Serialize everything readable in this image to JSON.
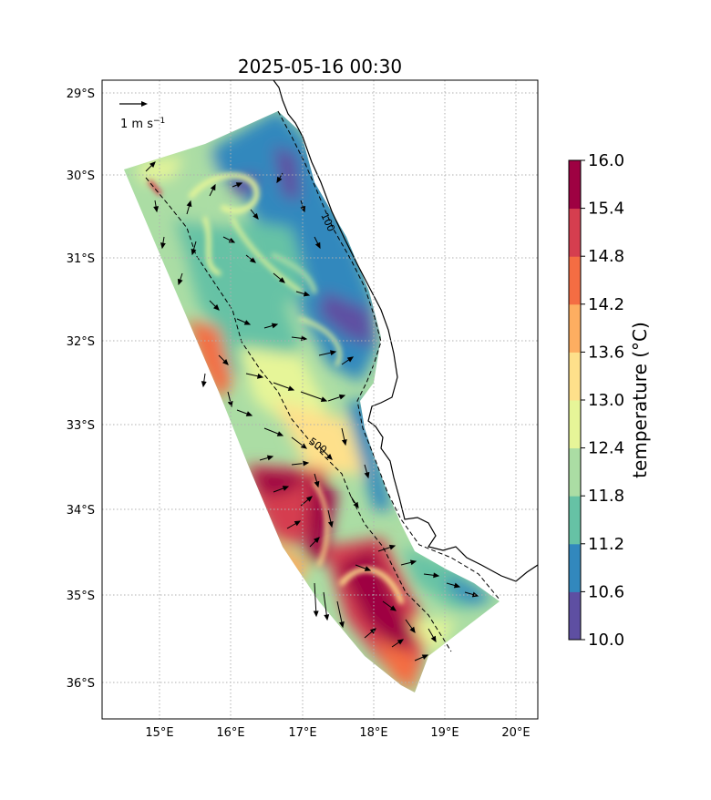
{
  "chart_data": {
    "type": "heatmap",
    "title": "2025-05-16 00:30",
    "x_ticks": [
      "15°E",
      "16°E",
      "17°E",
      "18°E",
      "19°E",
      "20°E"
    ],
    "x_tick_values": [
      15,
      16,
      17,
      18,
      19,
      20
    ],
    "y_ticks": [
      "29°S",
      "30°S",
      "31°S",
      "32°S",
      "33°S",
      "34°S",
      "35°S",
      "36°S"
    ],
    "y_tick_values": [
      -29,
      -30,
      -31,
      -32,
      -33,
      -34,
      -35,
      -36
    ],
    "xlim": [
      14.2,
      20.3
    ],
    "ylim": [
      -36.42,
      -28.85
    ],
    "grid": true,
    "colorbar": {
      "label": "temperature (°C)",
      "ticks": [
        "10.0",
        "10.6",
        "11.2",
        "11.8",
        "12.4",
        "13.0",
        "13.6",
        "14.2",
        "14.8",
        "15.4",
        "16.0"
      ],
      "levels": [
        10.0,
        10.6,
        11.2,
        11.8,
        12.4,
        13.0,
        13.6,
        14.2,
        14.8,
        15.4,
        16.0
      ],
      "colors": [
        "#5e4fa2",
        "#3288bd",
        "#66c2a5",
        "#abdda4",
        "#e6f598",
        "#fee08b",
        "#fdae61",
        "#f46d43",
        "#d53e4f",
        "#9e0142"
      ]
    },
    "quiver_key": {
      "label": "1 m s",
      "exponent": "−1"
    },
    "contour_labels": [
      "100",
      "500"
    ]
  }
}
